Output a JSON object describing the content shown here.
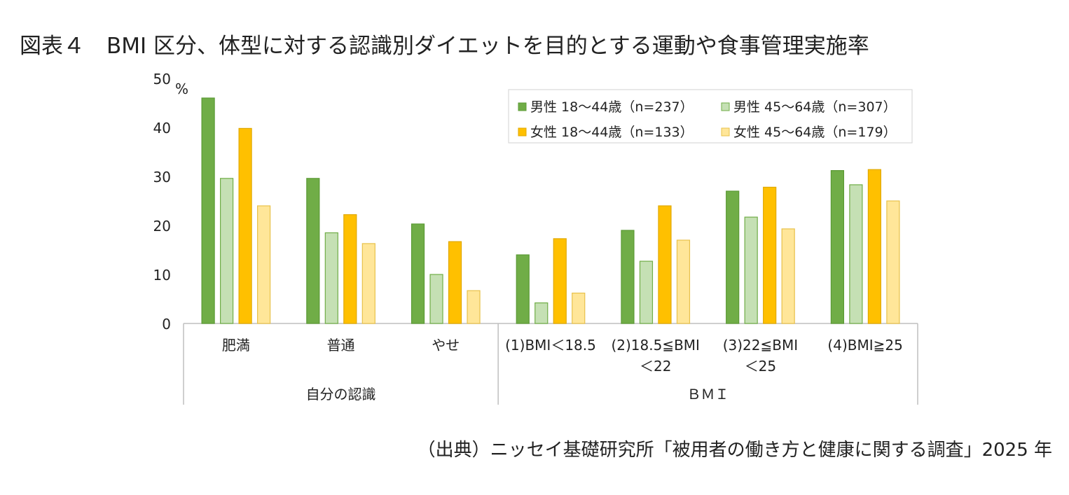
{
  "title": "図表４　BMI 区分、体型に対する認識別ダイエットを目的とする運動や食事管理実施率",
  "source": "（出典）ニッセイ基礎研究所「被用者の働き方と健康に関する調査」2025 年",
  "chart_data": {
    "type": "bar",
    "unit_label": "%",
    "ylim": [
      0,
      50
    ],
    "yticks": [
      0,
      10,
      20,
      30,
      40,
      50
    ],
    "grid": false,
    "legend_position": "top-right",
    "categories": [
      [
        "肥満"
      ],
      [
        "普通"
      ],
      [
        "やせ"
      ],
      [
        "(1)BMI＜18.5"
      ],
      [
        "(2)18.5≦BMI",
        "＜22"
      ],
      [
        "(3)22≦BMI",
        "＜25"
      ],
      [
        "(4)BMI≧25"
      ]
    ],
    "groups": [
      {
        "label": "自分の認識",
        "span": [
          0,
          2
        ]
      },
      {
        "label": "ＢＭＩ",
        "span": [
          3,
          6
        ]
      }
    ],
    "series": [
      {
        "name": "男性 18～44歳（n=237）",
        "fill": "#70ad47",
        "stroke": "#5b9a35",
        "values": [
          46.0,
          29.6,
          20.3,
          14.0,
          19.0,
          27.0,
          31.2
        ]
      },
      {
        "name": "男性 45～64歳（n=307）",
        "fill": "#c5e0b4",
        "stroke": "#70ad47",
        "values": [
          29.6,
          18.5,
          10.0,
          4.2,
          12.7,
          21.7,
          28.3
        ]
      },
      {
        "name": "女性 18～44歳（n=133）",
        "fill": "#ffc000",
        "stroke": "#e0a800",
        "values": [
          39.8,
          22.2,
          16.7,
          17.3,
          24.0,
          27.8,
          31.4
        ]
      },
      {
        "name": "女性 45～64歳（n=179）",
        "fill": "#ffe699",
        "stroke": "#e8c14a",
        "values": [
          24.0,
          16.3,
          6.7,
          6.2,
          17.0,
          19.3,
          25.0
        ]
      }
    ]
  }
}
